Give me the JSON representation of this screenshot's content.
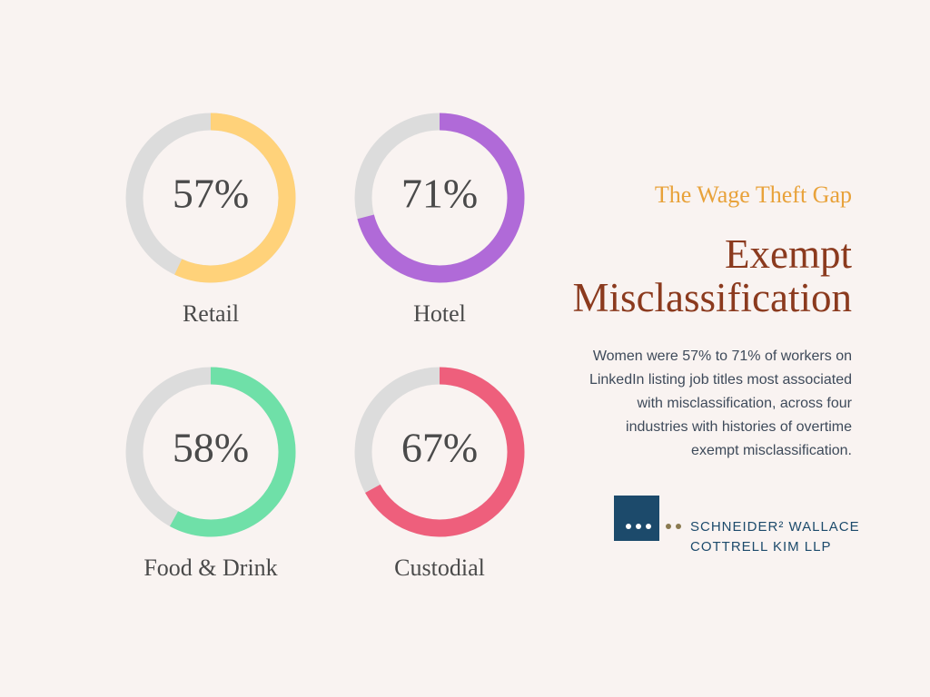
{
  "chart_data": [
    {
      "type": "donut",
      "categories": [
        "Retail"
      ],
      "values": [
        57
      ],
      "value_labels": [
        "57%"
      ],
      "color": "#ffd27a"
    },
    {
      "type": "donut",
      "categories": [
        "Hotel"
      ],
      "values": [
        71
      ],
      "value_labels": [
        "71%"
      ],
      "color": "#b06ad8"
    },
    {
      "type": "donut",
      "categories": [
        "Food & Drink"
      ],
      "values": [
        58
      ],
      "value_labels": [
        "58%"
      ],
      "color": "#6fe0a8"
    },
    {
      "type": "donut",
      "categories": [
        "Custodial"
      ],
      "values": [
        67
      ],
      "value_labels": [
        "67%"
      ],
      "color": "#ee5f7c"
    }
  ],
  "header": {
    "kicker": "The Wage Theft Gap",
    "title": "Exempt Misclassification",
    "body": "Women were 57% to 71% of workers on LinkedIn listing job titles most associated with misclassification, across four industries with histories of overtime exempt misclassification."
  },
  "logo": {
    "line1": "SCHNEIDER² WALLACE",
    "line2": "COTTRELL KIM LLP"
  }
}
